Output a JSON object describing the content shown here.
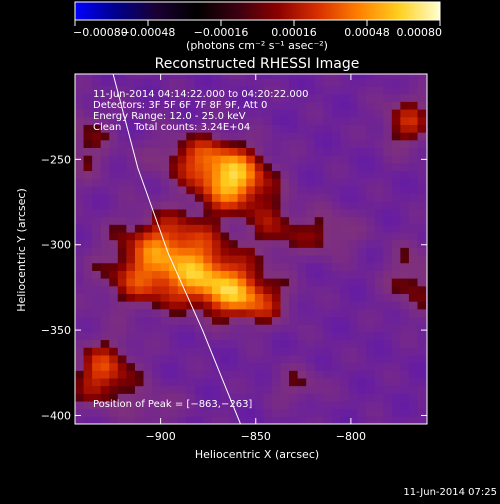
{
  "chart_data": {
    "type": "heatmap",
    "title": "Reconstructed RHESSI Image",
    "xlabel": "Heliocentric X (arcsec)",
    "ylabel": "Heliocentric Y (arcsec)",
    "xlim": [
      -945,
      -760
    ],
    "ylim": [
      -405,
      -200
    ],
    "x_ticks": [
      -900,
      -850,
      -800
    ],
    "x_tick_labels": [
      "−900",
      "−850",
      "−800"
    ],
    "y_ticks": [
      -250,
      -300,
      -350,
      -400
    ],
    "y_tick_labels": [
      "−250",
      "−300",
      "−350",
      "−400"
    ],
    "colorbar": {
      "min": -0.0008,
      "max": 0.0008,
      "ticks": [
        -0.0008,
        -0.00048,
        -0.00016,
        0.00016,
        0.00048,
        0.0008
      ],
      "tick_labels": [
        "−0.00080",
        "−0.00048",
        "−0.00016",
        "0.00016",
        "0.00048",
        "0.00080"
      ],
      "units_label": "(photons cm⁻² s⁻¹ asec⁻²)",
      "colormap": [
        "#0000ff",
        "#00008c",
        "#1a0033",
        "#000000",
        "#3a0010",
        "#8a0000",
        "#d83000",
        "#ff8000",
        "#ffd020",
        "#ffffd0"
      ]
    },
    "annotations": {
      "time_range": "11-Jun-2014 04:14:22.000 to 04:20:22.000",
      "detectors": "Detectors: 3F 5F 6F 7F 8F 9F, Att 0",
      "energy": "Energy Range: 12.0 - 25.0 keV",
      "clean": "Clean    Total counts: 3.24E+04",
      "peak": "Position of Peak = [−863,−263]"
    },
    "peak_position": [
      -863,
      -263
    ],
    "sources": [
      {
        "x": -862,
        "y": -263,
        "rx": 14,
        "ry": 12,
        "amp": 1.0
      },
      {
        "x": -880,
        "y": -248,
        "rx": 18,
        "ry": 10,
        "amp": 0.55
      },
      {
        "x": -895,
        "y": -300,
        "rx": 20,
        "ry": 14,
        "amp": 0.78
      },
      {
        "x": -872,
        "y": -322,
        "rx": 16,
        "ry": 12,
        "amp": 0.8
      },
      {
        "x": -910,
        "y": -322,
        "rx": 16,
        "ry": 12,
        "amp": 0.5
      },
      {
        "x": -852,
        "y": -333,
        "rx": 14,
        "ry": 10,
        "amp": 0.62
      },
      {
        "x": -930,
        "y": -375,
        "rx": 12,
        "ry": 14,
        "amp": 0.7
      },
      {
        "x": -840,
        "y": -290,
        "rx": 10,
        "ry": 12,
        "amp": 0.4
      },
      {
        "x": -812,
        "y": -293,
        "rx": 12,
        "ry": 10,
        "amp": 0.42
      },
      {
        "x": -770,
        "y": -228,
        "rx": 10,
        "ry": 12,
        "amp": 0.55
      },
      {
        "x": -768,
        "y": -320,
        "rx": 10,
        "ry": 14,
        "amp": 0.45
      },
      {
        "x": -828,
        "y": -382,
        "rx": 10,
        "ry": 8,
        "amp": 0.32
      },
      {
        "x": -940,
        "y": -240,
        "rx": 10,
        "ry": 16,
        "amp": 0.38
      },
      {
        "x": -902,
        "y": -395,
        "rx": 10,
        "ry": 8,
        "amp": 0.28
      }
    ],
    "limb_curve": [
      [
        -925,
        -200
      ],
      [
        -912,
        -255
      ],
      [
        -896,
        -305
      ],
      [
        -878,
        -350
      ],
      [
        -858,
        -405
      ]
    ],
    "grid": false
  },
  "footer": {
    "timestamp": "11-Jun-2014 07:25"
  }
}
